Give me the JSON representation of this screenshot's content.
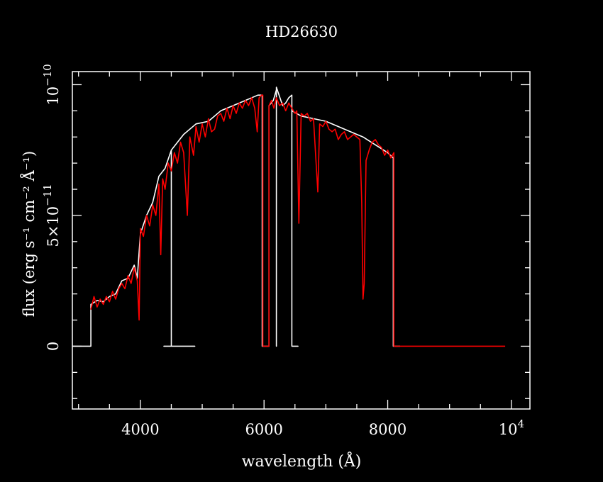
{
  "chart_data": {
    "type": "line",
    "title": "HD26630",
    "xlabel": "wavelength (Å)",
    "ylabel": "flux (erg s⁻¹ cm⁻² Å⁻¹)",
    "xlim": [
      2900,
      10300
    ],
    "ylim": [
      -2.4e-11,
      1.05e-10
    ],
    "x_ticks": [
      {
        "value": 4000,
        "label": "4000"
      },
      {
        "value": 6000,
        "label": "6000"
      },
      {
        "value": 8000,
        "label": "8000"
      },
      {
        "value": 10000,
        "label": "10",
        "exponent": "4"
      }
    ],
    "y_ticks": [
      {
        "value": 0,
        "label": "0"
      },
      {
        "value": 5e-11,
        "label": "5×10",
        "exponent": "−11"
      },
      {
        "value": 1e-10,
        "label": "10",
        "exponent": "−10"
      }
    ],
    "grid": false,
    "background": "#000000",
    "axis_color": "#ffffff",
    "series": [
      {
        "color": "#ffffff",
        "style": "solid",
        "points": [
          [
            2900,
            0
          ],
          [
            3200,
            0
          ],
          [
            3200,
            1.6e-11
          ],
          [
            3300,
            1.75e-11
          ],
          [
            3400,
            1.7e-11
          ],
          [
            3500,
            1.9e-11
          ],
          [
            3600,
            2e-11
          ],
          [
            3700,
            2.5e-11
          ],
          [
            3800,
            2.6e-11
          ],
          [
            3900,
            3.1e-11
          ],
          [
            3950,
            2.6e-11
          ],
          [
            4000,
            4.3e-11
          ],
          [
            4100,
            5e-11
          ],
          [
            4200,
            5.5e-11
          ],
          [
            4300,
            6.5e-11
          ],
          [
            4400,
            6.8e-11
          ],
          [
            4500,
            7.5e-11
          ],
          [
            4500,
            0
          ],
          [
            4380,
            0
          ],
          [
            4380,
            0
          ],
          [
            4880,
            0
          ],
          [
            4500,
            0
          ],
          [
            4500,
            7.5e-11
          ],
          [
            4700,
            8.1e-11
          ],
          [
            4900,
            8.5e-11
          ],
          [
            5100,
            8.6e-11
          ],
          [
            5300,
            9e-11
          ],
          [
            5500,
            9.2e-11
          ],
          [
            5700,
            9.4e-11
          ],
          [
            5900,
            9.6e-11
          ],
          [
            5970,
            9.6e-11
          ],
          [
            5970,
            0
          ],
          [
            6080,
            0
          ],
          [
            6080,
            9.2e-11
          ],
          [
            6150,
            9.4e-11
          ],
          [
            6200,
            9.8e-11
          ],
          [
            6200,
            0
          ],
          [
            6200,
            0
          ],
          [
            6200,
            9.9e-11
          ],
          [
            6300,
            9.2e-11
          ],
          [
            6350,
            9.3e-11
          ],
          [
            6400,
            9.5e-11
          ],
          [
            6450,
            9.6e-11
          ],
          [
            6450,
            0
          ],
          [
            6550,
            0
          ],
          [
            6450,
            0
          ],
          [
            6450,
            9e-11
          ],
          [
            6600,
            8.8e-11
          ],
          [
            6800,
            8.7e-11
          ],
          [
            7000,
            8.6e-11
          ],
          [
            7200,
            8.4e-11
          ],
          [
            7400,
            8.2e-11
          ],
          [
            7600,
            8e-11
          ],
          [
            7800,
            7.7e-11
          ],
          [
            8000,
            7.4e-11
          ],
          [
            8090,
            7.2e-11
          ],
          [
            8090,
            0
          ],
          [
            8200,
            0
          ]
        ]
      },
      {
        "color": "#ff0000",
        "style": "solid",
        "points": [
          [
            3200,
            1.4e-11
          ],
          [
            3250,
            1.9e-11
          ],
          [
            3300,
            1.5e-11
          ],
          [
            3350,
            1.8e-11
          ],
          [
            3400,
            1.6e-11
          ],
          [
            3450,
            1.9e-11
          ],
          [
            3500,
            1.7e-11
          ],
          [
            3550,
            2.1e-11
          ],
          [
            3600,
            1.8e-11
          ],
          [
            3650,
            2.2e-11
          ],
          [
            3700,
            2.4e-11
          ],
          [
            3750,
            2.2e-11
          ],
          [
            3800,
            2.7e-11
          ],
          [
            3850,
            2.4e-11
          ],
          [
            3900,
            3e-11
          ],
          [
            3950,
            2.5e-11
          ],
          [
            3980,
            1e-11
          ],
          [
            4000,
            4.5e-11
          ],
          [
            4050,
            4.2e-11
          ],
          [
            4100,
            5e-11
          ],
          [
            4150,
            4.6e-11
          ],
          [
            4200,
            5.4e-11
          ],
          [
            4250,
            5e-11
          ],
          [
            4300,
            6.2e-11
          ],
          [
            4330,
            3.5e-11
          ],
          [
            4360,
            6.4e-11
          ],
          [
            4400,
            6e-11
          ],
          [
            4450,
            7e-11
          ],
          [
            4500,
            6.7e-11
          ],
          [
            4550,
            7.4e-11
          ],
          [
            4600,
            7e-11
          ],
          [
            4650,
            7.8e-11
          ],
          [
            4700,
            7.4e-11
          ],
          [
            4760,
            5e-11
          ],
          [
            4800,
            8e-11
          ],
          [
            4860,
            7.3e-11
          ],
          [
            4900,
            8.4e-11
          ],
          [
            4950,
            7.8e-11
          ],
          [
            5000,
            8.5e-11
          ],
          [
            5050,
            8e-11
          ],
          [
            5100,
            8.7e-11
          ],
          [
            5150,
            8.2e-11
          ],
          [
            5200,
            8.3e-11
          ],
          [
            5250,
            8.8e-11
          ],
          [
            5300,
            8.9e-11
          ],
          [
            5350,
            8.6e-11
          ],
          [
            5400,
            9.1e-11
          ],
          [
            5450,
            8.7e-11
          ],
          [
            5500,
            9.2e-11
          ],
          [
            5550,
            8.9e-11
          ],
          [
            5600,
            9.3e-11
          ],
          [
            5650,
            9.1e-11
          ],
          [
            5700,
            9.4e-11
          ],
          [
            5750,
            9.2e-11
          ],
          [
            5800,
            9.5e-11
          ],
          [
            5850,
            9.1e-11
          ],
          [
            5890,
            8.2e-11
          ],
          [
            5920,
            9.5e-11
          ],
          [
            5960,
            9.6e-11
          ],
          [
            5980,
            9.6e-11
          ],
          [
            5980,
            0
          ],
          [
            6080,
            0
          ],
          [
            6080,
            9.2e-11
          ],
          [
            6120,
            9.4e-11
          ],
          [
            6160,
            9.1e-11
          ],
          [
            6200,
            9.5e-11
          ],
          [
            6250,
            9.2e-11
          ],
          [
            6300,
            9.3e-11
          ],
          [
            6350,
            9e-11
          ],
          [
            6400,
            9.3e-11
          ],
          [
            6450,
            9.1e-11
          ],
          [
            6500,
            8.9e-11
          ],
          [
            6530,
            9e-11
          ],
          [
            6563,
            4.7e-11
          ],
          [
            6600,
            8.9e-11
          ],
          [
            6650,
            8.8e-11
          ],
          [
            6700,
            8.9e-11
          ],
          [
            6750,
            8.6e-11
          ],
          [
            6800,
            8.7e-11
          ],
          [
            6870,
            5.9e-11
          ],
          [
            6900,
            8.5e-11
          ],
          [
            6950,
            8.4e-11
          ],
          [
            7000,
            8.6e-11
          ],
          [
            7050,
            8.3e-11
          ],
          [
            7100,
            8.2e-11
          ],
          [
            7150,
            8.3e-11
          ],
          [
            7200,
            7.9e-11
          ],
          [
            7250,
            8.1e-11
          ],
          [
            7300,
            8.2e-11
          ],
          [
            7350,
            7.9e-11
          ],
          [
            7400,
            8e-11
          ],
          [
            7450,
            8.1e-11
          ],
          [
            7500,
            8e-11
          ],
          [
            7550,
            7.9e-11
          ],
          [
            7580,
            5.5e-11
          ],
          [
            7600,
            1.8e-11
          ],
          [
            7620,
            2.4e-11
          ],
          [
            7650,
            7.1e-11
          ],
          [
            7700,
            7.5e-11
          ],
          [
            7750,
            7.8e-11
          ],
          [
            7800,
            7.9e-11
          ],
          [
            7850,
            7.7e-11
          ],
          [
            7900,
            7.6e-11
          ],
          [
            7950,
            7.3e-11
          ],
          [
            8000,
            7.5e-11
          ],
          [
            8050,
            7.2e-11
          ],
          [
            8100,
            7.4e-11
          ],
          [
            8100,
            0
          ],
          [
            9900,
            0
          ]
        ]
      }
    ]
  }
}
